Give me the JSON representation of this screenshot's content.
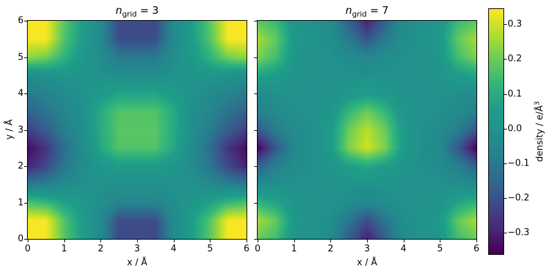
{
  "figure": {
    "background": "#ffffff"
  },
  "ylabel": "y / Å",
  "panels": [
    {
      "title": {
        "var": "n",
        "sub": "grid",
        "rest": " = 3"
      },
      "xlabel": "x / Å"
    },
    {
      "title": {
        "var": "n",
        "sub": "grid",
        "rest": " = 7"
      },
      "xlabel": "x / Å"
    }
  ],
  "colorbar": {
    "label_main": "density / e/Å",
    "label_sup": "3",
    "colormap": "viridis",
    "vmin": -0.36,
    "vmax": 0.345,
    "ticks": [
      {
        "label": "0.3",
        "value": 0.3
      },
      {
        "label": "0.2",
        "value": 0.2
      },
      {
        "label": "0.1",
        "value": 0.1
      },
      {
        "label": "0.0",
        "value": 0.0
      },
      {
        "label": "−0.1",
        "value": -0.1
      },
      {
        "label": "−0.2",
        "value": -0.2
      },
      {
        "label": "−0.3",
        "value": -0.3
      }
    ]
  },
  "chart_data": [
    {
      "type": "heatmap",
      "title": "n_grid = 3",
      "xlabel": "x / Å",
      "ylabel": "y / Å",
      "xlim": [
        0,
        6
      ],
      "ylim": [
        0,
        6
      ],
      "xticks": [
        0,
        1,
        2,
        3,
        4,
        5,
        6
      ],
      "yticks": [
        0,
        1,
        2,
        3,
        4,
        5,
        6
      ],
      "colormap": "viridis",
      "vmin": -0.36,
      "vmax": 0.345,
      "x": [
        0,
        0.5,
        1,
        1.5,
        2,
        2.5,
        3,
        3.5,
        4,
        4.5,
        5,
        5.5,
        6
      ],
      "y_top_to_bottom": [
        6,
        5.5,
        5,
        4.5,
        4,
        3.5,
        3,
        2.5,
        2,
        1.5,
        1,
        0.5,
        0
      ],
      "values_rows_y6_to_y0": [
        [
          0.34,
          0.34,
          0.18,
          0.06,
          -0.04,
          -0.22,
          -0.22,
          -0.22,
          -0.04,
          0.06,
          0.18,
          0.34,
          0.34
        ],
        [
          0.34,
          0.34,
          0.17,
          0.05,
          -0.04,
          -0.21,
          -0.21,
          -0.21,
          -0.04,
          0.05,
          0.17,
          0.34,
          0.34
        ],
        [
          0.24,
          0.21,
          0.12,
          0.03,
          -0.02,
          -0.1,
          -0.1,
          -0.1,
          -0.02,
          0.03,
          0.12,
          0.21,
          0.24
        ],
        [
          -0.02,
          0.0,
          0.02,
          0.01,
          0.0,
          -0.02,
          -0.03,
          -0.02,
          0.0,
          0.01,
          0.02,
          0.0,
          -0.02
        ],
        [
          -0.1,
          -0.07,
          -0.03,
          0.0,
          0.04,
          0.08,
          0.08,
          0.08,
          0.04,
          0.0,
          -0.03,
          -0.07,
          -0.1
        ],
        [
          -0.16,
          -0.12,
          -0.06,
          -0.01,
          0.1,
          0.17,
          0.17,
          0.17,
          0.1,
          -0.01,
          -0.06,
          -0.12,
          -0.16
        ],
        [
          -0.24,
          -0.17,
          -0.09,
          -0.02,
          0.1,
          0.18,
          0.18,
          0.18,
          0.1,
          -0.02,
          -0.09,
          -0.17,
          -0.24
        ],
        [
          -0.34,
          -0.26,
          -0.13,
          -0.03,
          0.09,
          0.17,
          0.17,
          0.17,
          0.09,
          -0.03,
          -0.13,
          -0.26,
          -0.34
        ],
        [
          -0.3,
          -0.22,
          -0.11,
          -0.03,
          0.02,
          0.05,
          0.05,
          0.05,
          0.02,
          -0.03,
          -0.11,
          -0.22,
          -0.3
        ],
        [
          -0.1,
          -0.08,
          -0.04,
          0.0,
          0.0,
          -0.01,
          -0.01,
          -0.01,
          0.0,
          0.0,
          -0.04,
          -0.08,
          -0.1
        ],
        [
          0.16,
          0.13,
          0.07,
          0.02,
          -0.02,
          -0.06,
          -0.06,
          -0.06,
          -0.02,
          0.02,
          0.07,
          0.13,
          0.16
        ],
        [
          0.34,
          0.34,
          0.17,
          0.05,
          -0.04,
          -0.21,
          -0.21,
          -0.21,
          -0.04,
          0.05,
          0.17,
          0.34,
          0.34
        ],
        [
          0.34,
          0.34,
          0.18,
          0.06,
          -0.04,
          -0.22,
          -0.22,
          -0.22,
          -0.04,
          0.06,
          0.18,
          0.34,
          0.34
        ]
      ]
    },
    {
      "type": "heatmap",
      "title": "n_grid = 7",
      "xlabel": "x / Å",
      "ylabel": "y / Å",
      "xlim": [
        0,
        6
      ],
      "ylim": [
        0,
        6
      ],
      "xticks": [
        0,
        1,
        2,
        3,
        4,
        5,
        6
      ],
      "yticks": [
        0,
        1,
        2,
        3,
        4,
        5,
        6
      ],
      "colormap": "viridis",
      "vmin": -0.36,
      "vmax": 0.345,
      "x": [
        0,
        0.5,
        1,
        1.5,
        2,
        2.5,
        3,
        3.5,
        4,
        4.5,
        5,
        5.5,
        6
      ],
      "y_top_to_bottom": [
        6,
        5.5,
        5,
        4.5,
        4,
        3.5,
        3,
        2.5,
        2,
        1.5,
        1,
        0.5,
        0
      ],
      "values_rows_y6_to_y0": [
        [
          0.18,
          0.14,
          0.02,
          0.0,
          -0.03,
          -0.16,
          -0.3,
          -0.16,
          -0.03,
          0.0,
          0.02,
          0.14,
          0.18
        ],
        [
          0.26,
          0.19,
          0.03,
          0.0,
          -0.02,
          -0.1,
          -0.19,
          -0.1,
          -0.02,
          0.0,
          0.03,
          0.19,
          0.26
        ],
        [
          0.22,
          0.15,
          0.02,
          0.0,
          0.0,
          -0.03,
          -0.05,
          -0.03,
          0.0,
          0.0,
          0.02,
          0.15,
          0.22
        ],
        [
          0.08,
          0.05,
          0.01,
          0.0,
          0.0,
          0.0,
          -0.01,
          0.0,
          0.0,
          0.0,
          0.01,
          0.05,
          0.08
        ],
        [
          -0.03,
          -0.01,
          0.0,
          0.0,
          0.0,
          0.03,
          0.05,
          0.03,
          0.0,
          0.0,
          0.0,
          -0.01,
          -0.03
        ],
        [
          -0.08,
          -0.04,
          -0.01,
          0.0,
          0.02,
          0.13,
          0.2,
          0.13,
          0.02,
          0.0,
          -0.01,
          -0.04,
          -0.08
        ],
        [
          -0.18,
          -0.09,
          -0.03,
          -0.01,
          0.04,
          0.2,
          0.28,
          0.2,
          0.04,
          -0.01,
          -0.03,
          -0.09,
          -0.18
        ],
        [
          -0.36,
          -0.18,
          -0.05,
          -0.01,
          0.04,
          0.22,
          0.3,
          0.22,
          0.04,
          -0.01,
          -0.05,
          -0.18,
          -0.36
        ],
        [
          -0.16,
          -0.08,
          -0.03,
          -0.01,
          0.01,
          0.06,
          0.09,
          0.06,
          0.01,
          -0.01,
          -0.03,
          -0.08,
          -0.16
        ],
        [
          -0.04,
          -0.02,
          0.0,
          0.0,
          0.0,
          0.0,
          0.0,
          0.0,
          0.0,
          0.0,
          0.0,
          -0.02,
          -0.04
        ],
        [
          0.12,
          0.08,
          0.01,
          0.0,
          0.0,
          -0.02,
          -0.05,
          -0.02,
          0.0,
          0.0,
          0.01,
          0.08,
          0.12
        ],
        [
          0.26,
          0.19,
          0.03,
          0.0,
          -0.02,
          -0.11,
          -0.21,
          -0.11,
          -0.02,
          0.0,
          0.03,
          0.19,
          0.26
        ],
        [
          0.2,
          0.15,
          0.02,
          0.0,
          -0.03,
          -0.17,
          -0.3,
          -0.17,
          -0.03,
          0.0,
          0.02,
          0.15,
          0.2
        ]
      ]
    }
  ]
}
